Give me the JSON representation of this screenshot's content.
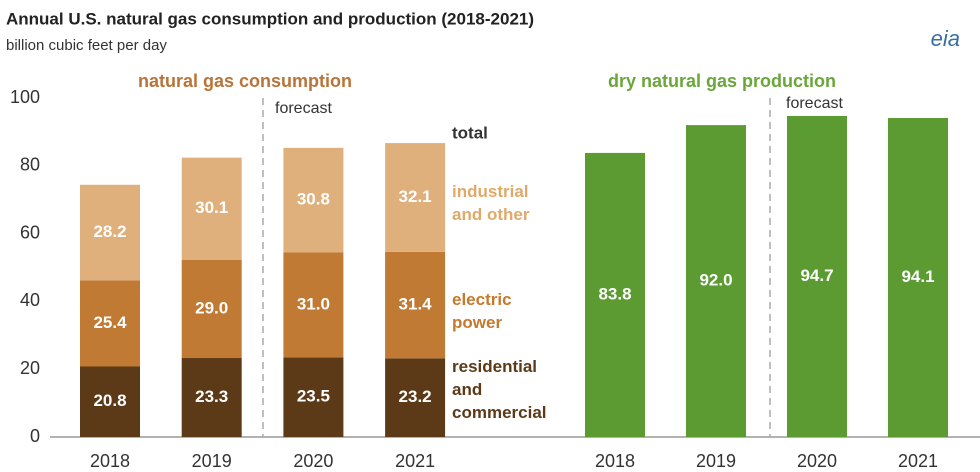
{
  "header": {
    "title": "Annual U.S. natural gas consumption and production (2018-2021)",
    "subtitle": "billion cubic feet per day",
    "logo": "eia"
  },
  "chart_data": [
    {
      "type": "stacked_bar",
      "title": "natural gas consumption",
      "annotation": "forecast",
      "total_label": "total",
      "categories": [
        "2018",
        "2019",
        "2020",
        "2021"
      ],
      "series": [
        {
          "name": "residential\nand\ncommercial",
          "color": "#5c3a17",
          "values": [
            20.8,
            23.3,
            23.5,
            23.2
          ]
        },
        {
          "name": "electric\npower",
          "color": "#c07a34",
          "values": [
            25.4,
            29.0,
            31.0,
            31.4
          ],
          "value_labels": [
            "25.4",
            "29.0",
            "31.0",
            "31.4"
          ]
        },
        {
          "name": "industrial\nand other",
          "color": "#e0b07c",
          "values": [
            28.2,
            30.1,
            30.8,
            32.1
          ]
        }
      ],
      "ylim": [
        0,
        100
      ],
      "yticks": [
        0,
        20,
        40,
        60,
        80,
        100
      ]
    },
    {
      "type": "bar",
      "title": "dry natural gas production",
      "annotation": "forecast",
      "categories": [
        "2018",
        "2019",
        "2020",
        "2021"
      ],
      "values": [
        83.8,
        92.0,
        94.7,
        94.1
      ],
      "value_labels": [
        "83.8",
        "92.0",
        "94.7",
        "94.1"
      ],
      "color": "#5b9b32",
      "ylim": [
        0,
        100
      ]
    }
  ]
}
